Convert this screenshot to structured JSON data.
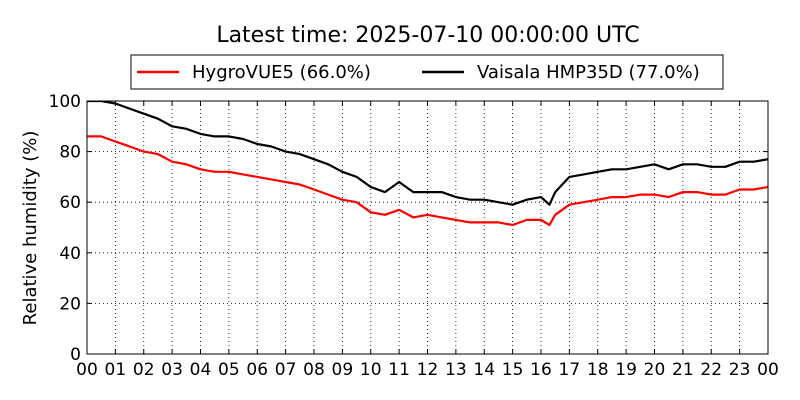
{
  "chart_data": {
    "type": "line",
    "title": "Latest time: 2025-07-10 00:00:00 UTC",
    "ylabel": "Relative humidity (%)",
    "xlabel": "",
    "ylim": [
      0,
      100
    ],
    "xlim": [
      0,
      24
    ],
    "yticks": [
      "0",
      "20",
      "40",
      "60",
      "80",
      "100"
    ],
    "xticks": [
      "00",
      "01",
      "02",
      "03",
      "04",
      "05",
      "06",
      "07",
      "08",
      "09",
      "10",
      "11",
      "12",
      "13",
      "14",
      "15",
      "16",
      "17",
      "18",
      "19",
      "20",
      "21",
      "22",
      "23",
      "00"
    ],
    "grid": true,
    "legend_position": "top-center",
    "series": [
      {
        "name": "HygroVUE5 (66.0%)",
        "color": "#ff0000",
        "x": [
          0,
          0.5,
          1,
          1.5,
          2,
          2.5,
          3,
          3.5,
          4,
          4.5,
          5,
          5.5,
          6,
          6.5,
          7,
          7.5,
          8,
          8.5,
          9,
          9.5,
          10,
          10.5,
          11,
          11.5,
          12,
          12.5,
          13,
          13.5,
          14,
          14.5,
          15,
          15.5,
          16,
          16.3,
          16.5,
          17,
          17.5,
          18,
          18.5,
          19,
          19.5,
          20,
          20.5,
          21,
          21.5,
          22,
          22.5,
          23,
          23.5,
          24
        ],
        "y": [
          86,
          86,
          84,
          82,
          80,
          79,
          76,
          75,
          73,
          72,
          72,
          71,
          70,
          69,
          68,
          67,
          65,
          63,
          61,
          60,
          56,
          55,
          57,
          54,
          55,
          54,
          53,
          52,
          52,
          52,
          51,
          53,
          53,
          51,
          55,
          59,
          60,
          61,
          62,
          62,
          63,
          63,
          62,
          64,
          64,
          63,
          63,
          65,
          65,
          66
        ]
      },
      {
        "name": "Vaisala HMP35D (77.0%)",
        "color": "#000000",
        "x": [
          0,
          0.5,
          1,
          1.5,
          2,
          2.5,
          3,
          3.5,
          4,
          4.5,
          5,
          5.5,
          6,
          6.5,
          7,
          7.5,
          8,
          8.5,
          9,
          9.5,
          10,
          10.5,
          11,
          11.5,
          12,
          12.5,
          13,
          13.5,
          14,
          14.5,
          15,
          15.5,
          16,
          16.3,
          16.5,
          17,
          17.5,
          18,
          18.5,
          19,
          19.5,
          20,
          20.5,
          21,
          21.5,
          22,
          22.5,
          23,
          23.5,
          24
        ],
        "y": [
          100,
          100,
          99,
          97,
          95,
          93,
          90,
          89,
          87,
          86,
          86,
          85,
          83,
          82,
          80,
          79,
          77,
          75,
          72,
          70,
          66,
          64,
          68,
          64,
          64,
          64,
          62,
          61,
          61,
          60,
          59,
          61,
          62,
          59,
          64,
          70,
          71,
          72,
          73,
          73,
          74,
          75,
          73,
          75,
          75,
          74,
          74,
          76,
          76,
          77
        ]
      }
    ]
  }
}
